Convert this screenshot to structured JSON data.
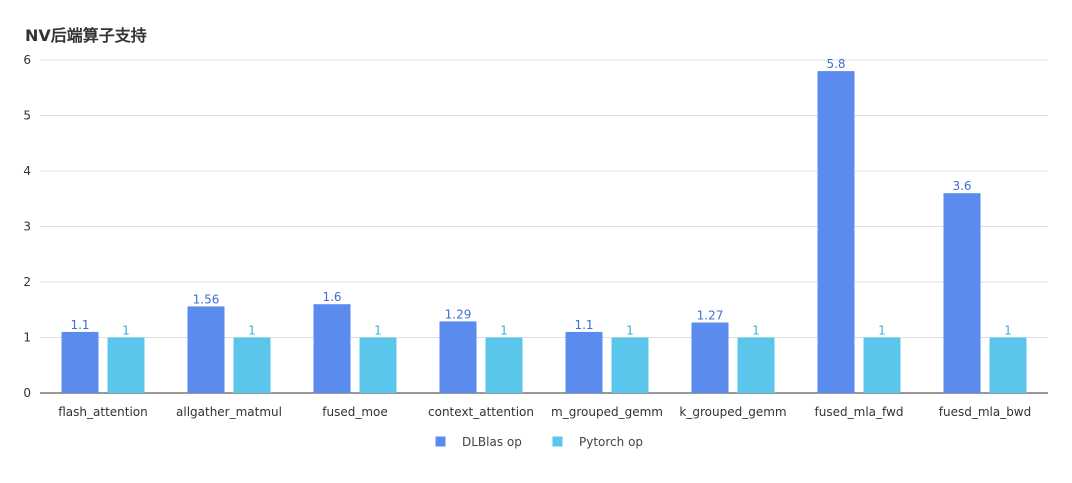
{
  "chart_data": {
    "type": "bar",
    "title": "NV后端算子支持",
    "categories": [
      "flash_attention",
      "allgather_matmul",
      "fused_moe",
      "context_attention",
      "m_grouped_gemm",
      "k_grouped_gemm",
      "fused_mla_fwd",
      "fuesd_mla_bwd"
    ],
    "series": [
      {
        "name": "DLBlas op",
        "color": "#5B8BEE",
        "label_color": "#3f6fd1",
        "values": [
          1.1,
          1.56,
          1.6,
          1.29,
          1.1,
          1.27,
          5.8,
          3.6
        ]
      },
      {
        "name": "Pytorch op",
        "color": "#5BC6EC",
        "label_color": "#3ab0dc",
        "values": [
          1,
          1,
          1,
          1,
          1,
          1,
          1,
          1
        ]
      }
    ],
    "ylim": [
      0,
      6
    ],
    "yticks": [
      0,
      1,
      2,
      3,
      4,
      5,
      6
    ],
    "grid": true,
    "legend_position": "bottom-center",
    "xlabel": "",
    "ylabel": ""
  }
}
